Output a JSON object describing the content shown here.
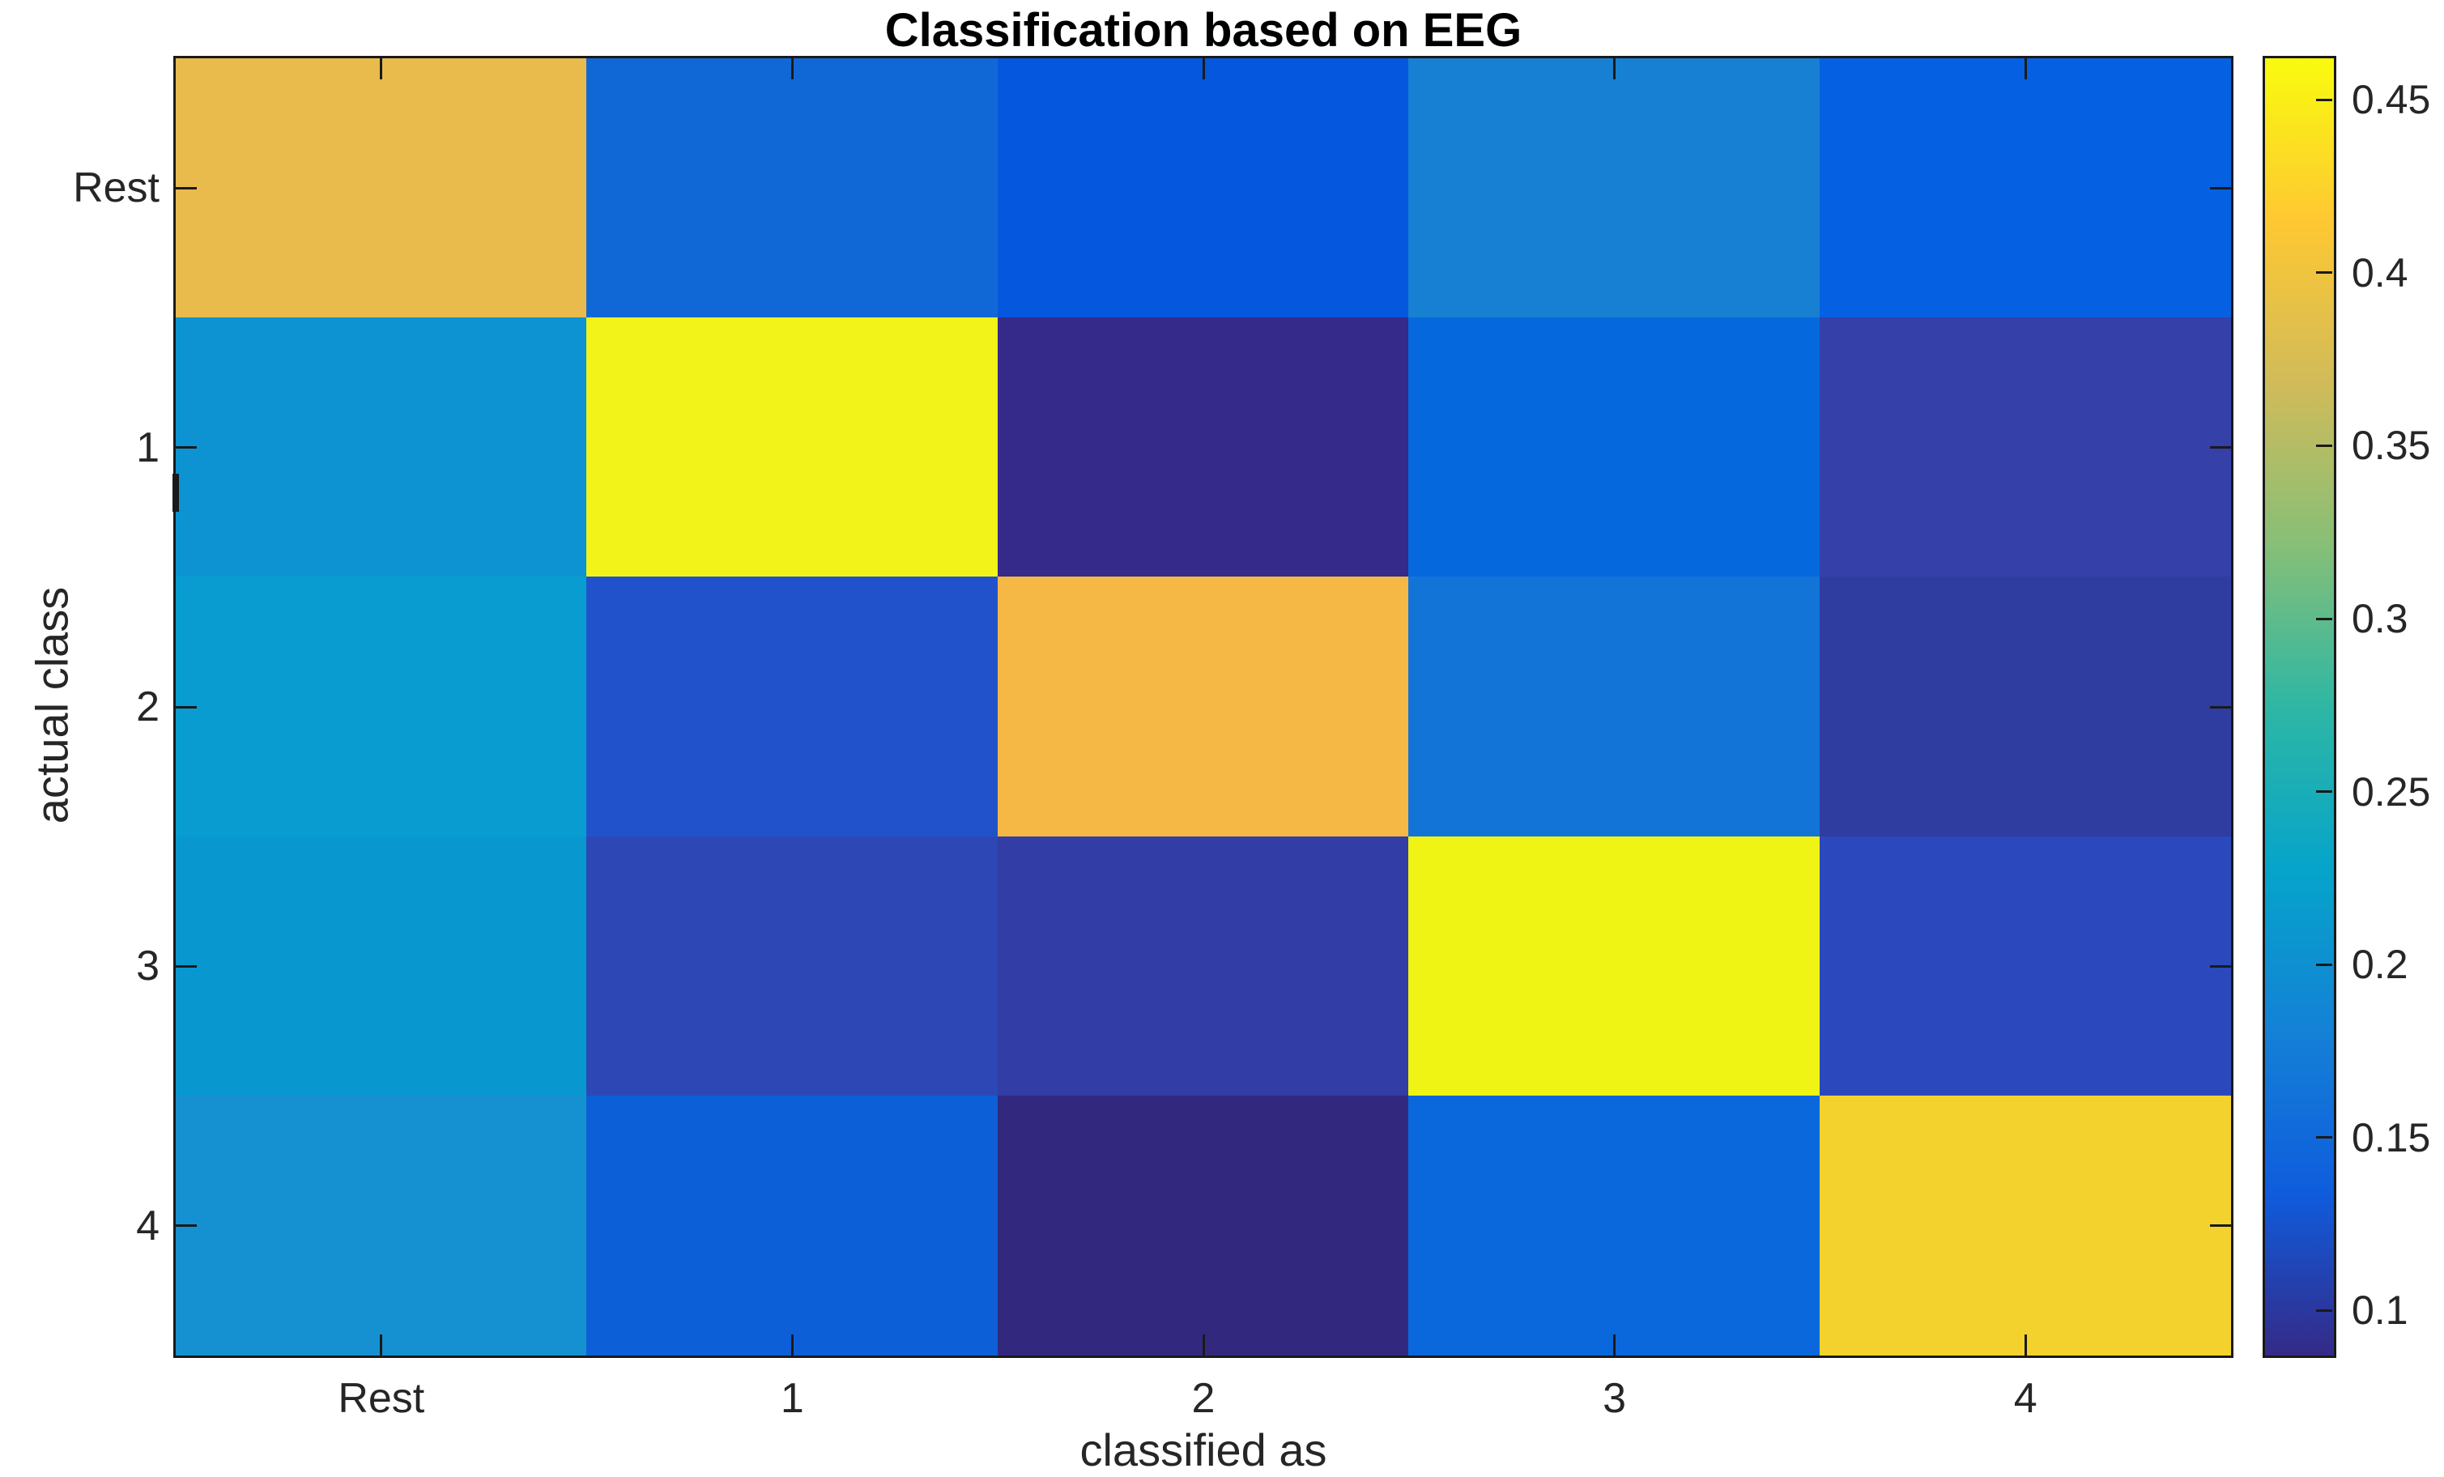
{
  "chart_data": {
    "type": "heatmap",
    "title": "Classification based on EEG",
    "xlabel": "classified as",
    "ylabel": "actual class",
    "x_tick_labels": [
      "Rest",
      "1",
      "2",
      "3",
      "4"
    ],
    "y_tick_labels": [
      "Rest",
      "1",
      "2",
      "3",
      "4"
    ],
    "values": [
      [
        0.39,
        0.15,
        0.135,
        0.18,
        0.14
      ],
      [
        0.205,
        0.455,
        0.09,
        0.15,
        0.105
      ],
      [
        0.205,
        0.125,
        0.405,
        0.16,
        0.105
      ],
      [
        0.21,
        0.115,
        0.105,
        0.455,
        0.12
      ],
      [
        0.2,
        0.14,
        0.087,
        0.15,
        0.425
      ]
    ],
    "cell_colors": [
      [
        "#e9bb4d",
        "#1068d6",
        "#0557de",
        "#1780d2",
        "#0561e2"
      ],
      [
        "#0d93d2",
        "#f2f419",
        "#35298a",
        "#0569dd",
        "#3540a8"
      ],
      [
        "#089cd0",
        "#2152cc",
        "#f6b844",
        "#1374d8",
        "#303da0"
      ],
      [
        "#0997d0",
        "#2d48b4",
        "#323da5",
        "#f0f414",
        "#2b49bd"
      ],
      [
        "#1590d0",
        "#0d5fd8",
        "#32297e",
        "#0a68dc",
        "#f4d22e"
      ]
    ],
    "colorbar": {
      "vmin": 0.087,
      "vmax": 0.462,
      "ticks": [
        0.1,
        0.15,
        0.2,
        0.25,
        0.3,
        0.35,
        0.4,
        0.45
      ],
      "tick_labels": [
        "0.1",
        "0.15",
        "0.2",
        "0.25",
        "0.3",
        "0.35",
        "0.4",
        "0.45"
      ],
      "position": "right"
    },
    "colormap": "parula",
    "colormap_colors": [
      "#352a87",
      "#0f5cdd",
      "#1481d6",
      "#06a4ca",
      "#2eb7a4",
      "#87bf77",
      "#d1bb59",
      "#fec832",
      "#f9fb0e"
    ],
    "grid": false,
    "axis_color": "#1a1a1a",
    "text_color": "#262626",
    "title_color": "#000000",
    "background_color": "#ffffff"
  }
}
